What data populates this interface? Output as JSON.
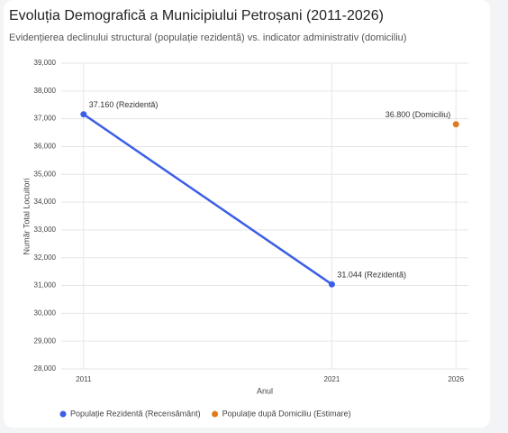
{
  "chart_data": {
    "type": "line",
    "title": "Evoluția Demografică a Municipiului Petroșani (2011-2026)",
    "subtitle": "Evidențierea declinului structural (populație rezidentă) vs. indicator administrativ (domiciliu)",
    "x_label": "Anul",
    "y_label": "Număr Total Locuitori",
    "x": [
      2011,
      2021,
      2026
    ],
    "series": [
      {
        "name": "Populație Rezidentă (Recensământ)",
        "color": "#3b5ee6",
        "values": [
          37160,
          31044,
          null
        ],
        "value_labels": [
          "37.160 (Rezidentă)",
          "31.044 (Rezidentă)",
          null
        ]
      },
      {
        "name": "Populație după Domiciliu (Estimare)",
        "color": "#e07b1a",
        "values": [
          null,
          null,
          36800
        ],
        "value_labels": [
          null,
          null,
          "36.800 (Domiciliu)"
        ]
      }
    ],
    "xlim": [
      2010.1,
      2026.5
    ],
    "xticks": [
      2011,
      2021,
      2026
    ],
    "ylim": [
      28000,
      39000
    ],
    "yticks": [
      {
        "value": 28000,
        "label": "28,000"
      },
      {
        "value": 29000,
        "label": "29,000"
      },
      {
        "value": 30000,
        "label": "30,000"
      },
      {
        "value": 31000,
        "label": "31,000"
      },
      {
        "value": 32000,
        "label": "32,000"
      },
      {
        "value": 33000,
        "label": "33,000"
      },
      {
        "value": 34000,
        "label": "34,000"
      },
      {
        "value": 35000,
        "label": "35,000"
      },
      {
        "value": 36000,
        "label": "36,000"
      },
      {
        "value": 37000,
        "label": "37,000"
      },
      {
        "value": 38000,
        "label": "38,000"
      },
      {
        "value": 39000,
        "label": "39,000"
      }
    ],
    "grid": true,
    "legend": "bottom"
  }
}
